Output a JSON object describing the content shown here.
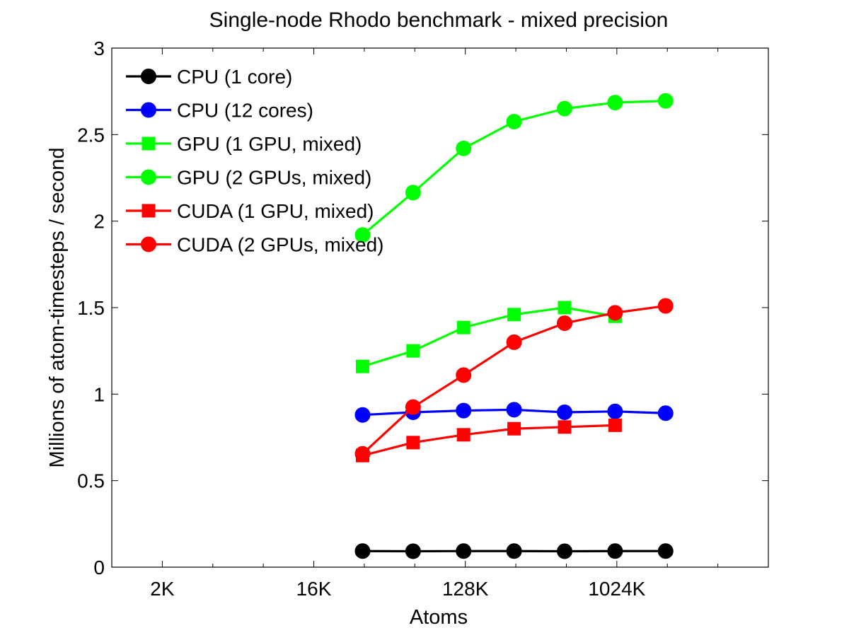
{
  "chart_data": {
    "type": "line",
    "title": "Single-node Rhodo benchmark - mixed precision",
    "xlabel": "Atoms",
    "ylabel": "Millions of atom-timesteps / second",
    "x_scale": "log2",
    "xlim": [
      1024,
      8388608
    ],
    "ylim": [
      0,
      3
    ],
    "xticks": [
      2048,
      16384,
      131072,
      1048576
    ],
    "xtick_labels": [
      "2K",
      "16K",
      "128K",
      "1024K"
    ],
    "yticks": [
      0,
      0.5,
      1,
      1.5,
      2,
      2.5,
      3
    ],
    "ytick_labels": [
      "0",
      "0.5",
      "1",
      "1.5",
      "2",
      "2.5",
      "3"
    ],
    "grid": false,
    "legend_position": "top-left",
    "x": [
      32000,
      64000,
      128000,
      256000,
      512000,
      1024000,
      2048000
    ],
    "series": [
      {
        "name": "CPU (1 core)",
        "color": "#000000",
        "marker": "circle",
        "values": [
          0.093,
          0.092,
          0.093,
          0.093,
          0.092,
          0.093,
          0.093
        ]
      },
      {
        "name": "CPU (12 cores)",
        "color": "#0000ff",
        "marker": "circle",
        "values": [
          0.88,
          0.895,
          0.905,
          0.91,
          0.895,
          0.9,
          0.89
        ]
      },
      {
        "name": "GPU (1 GPU, mixed)",
        "color": "#00ff00",
        "marker": "square",
        "values": [
          1.16,
          1.25,
          1.385,
          1.46,
          1.5,
          1.45,
          null
        ]
      },
      {
        "name": "GPU (2 GPUs, mixed)",
        "color": "#00ff00",
        "marker": "circle",
        "values": [
          1.92,
          2.165,
          2.42,
          2.575,
          2.65,
          2.685,
          2.695
        ]
      },
      {
        "name": "CUDA (1 GPU, mixed)",
        "color": "#ff0000",
        "marker": "square",
        "values": [
          0.645,
          0.72,
          0.765,
          0.8,
          0.81,
          0.82,
          null
        ]
      },
      {
        "name": "CUDA (2 GPUs, mixed)",
        "color": "#ff0000",
        "marker": "circle",
        "values": [
          0.655,
          0.925,
          1.11,
          1.3,
          1.41,
          1.47,
          1.51
        ]
      }
    ]
  }
}
